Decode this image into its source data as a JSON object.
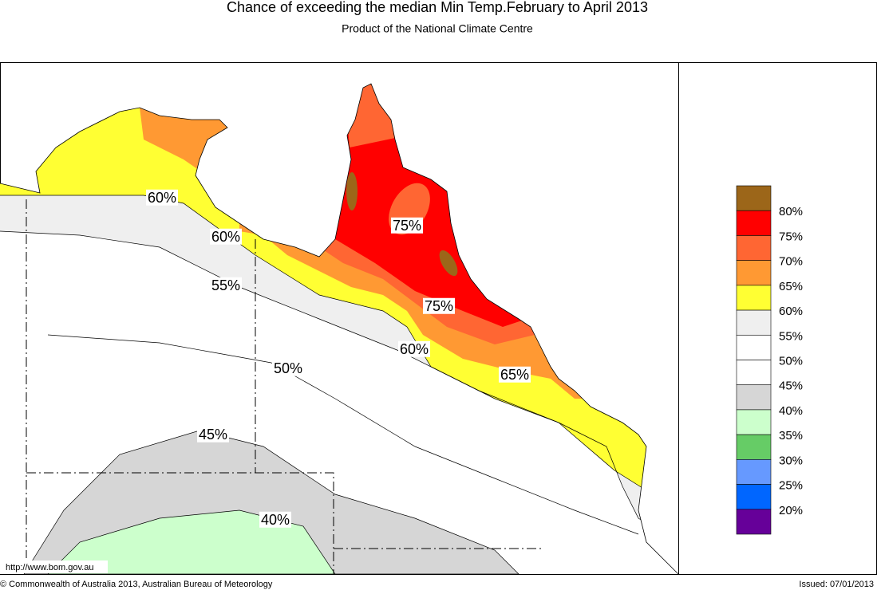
{
  "header": {
    "title": "Chance of exceeding the median Min Temp.February to April 2013",
    "subtitle": "Product of the National Climate Centre"
  },
  "map": {
    "contour_labels": [
      "60%",
      "60%",
      "55%",
      "50%",
      "45%",
      "40%",
      "75%",
      "75%",
      "60%",
      "65%"
    ]
  },
  "legend": {
    "colors": [
      "#9c6619",
      "#ff0000",
      "#ff6633",
      "#ff9933",
      "#ffff33",
      "#efefef",
      "#ffffff",
      "#ffffff",
      "#d6d6d6",
      "#ccffcc",
      "#66cc66",
      "#6699ff",
      "#0066ff",
      "#660099"
    ],
    "labels": [
      "80%",
      "75%",
      "70%",
      "65%",
      "60%",
      "55%",
      "50%",
      "45%",
      "40%",
      "35%",
      "30%",
      "25%",
      "20%"
    ]
  },
  "footer": {
    "url": "http://www.bom.gov.au",
    "copyright": "© Commonwealth of Australia 2013, Australian Bureau of Meteorology",
    "issued": "Issued: 07/01/2013"
  }
}
